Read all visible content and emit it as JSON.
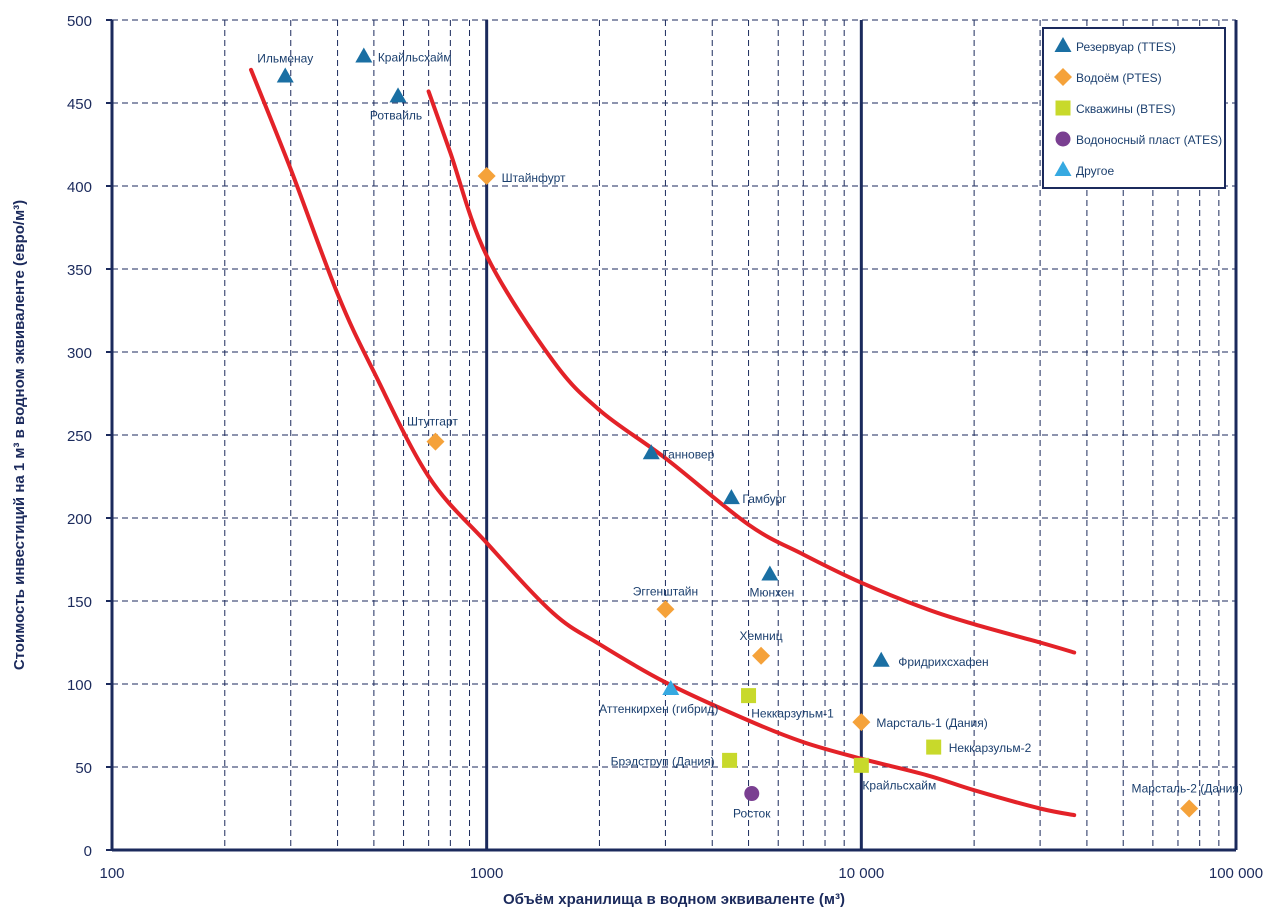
{
  "chart_data": {
    "type": "scatter",
    "title": "",
    "xlabel": "Объём хранилища в водном эквиваленте (м³)",
    "ylabel": "Стоимость инвестиций на 1 м³ в водном эквиваленте (евро/м³)",
    "xscale": "log",
    "xlim": [
      100,
      100000
    ],
    "ylim": [
      0,
      500
    ],
    "x_ticks": [
      100,
      1000,
      10000,
      100000
    ],
    "x_tick_labels": [
      "100",
      "1000",
      "10 000",
      "100 000"
    ],
    "y_ticks": [
      0,
      50,
      100,
      150,
      200,
      250,
      300,
      350,
      400,
      450,
      500
    ],
    "grid": true,
    "legend_position": "top-right",
    "series": [
      {
        "name": "Резервуар (TTES)",
        "marker": "triangle",
        "color": "#1a6fa3",
        "points": [
          {
            "x": 290,
            "y": 466,
            "label": "Ильменау"
          },
          {
            "x": 470,
            "y": 478,
            "label": "Крайльсхайм"
          },
          {
            "x": 580,
            "y": 454,
            "label": "Ротвайль"
          },
          {
            "x": 2750,
            "y": 239,
            "label": "Ганновер"
          },
          {
            "x": 4500,
            "y": 212,
            "label": "Гамбург"
          },
          {
            "x": 5700,
            "y": 166,
            "label": "Мюнхен"
          },
          {
            "x": 11300,
            "y": 114,
            "label": "Фридрихсхафен"
          }
        ]
      },
      {
        "name": "Водоём (PTES)",
        "marker": "diamond",
        "color": "#f5a23a",
        "points": [
          {
            "x": 1000,
            "y": 406,
            "label": "Штайнфурт"
          },
          {
            "x": 730,
            "y": 246,
            "label": "Штутгарт"
          },
          {
            "x": 3000,
            "y": 145,
            "label": "Эггенштайн"
          },
          {
            "x": 5400,
            "y": 117,
            "label": "Хемниц"
          },
          {
            "x": 10000,
            "y": 77,
            "label": "Марсталь-1 (Дания)"
          },
          {
            "x": 75000,
            "y": 25,
            "label": "Марсталь-2 (Дания)"
          }
        ]
      },
      {
        "name": "Скважины (BTES)",
        "marker": "square",
        "color": "#c8d92b",
        "points": [
          {
            "x": 5000,
            "y": 93,
            "label": "Неккарзульм-1"
          },
          {
            "x": 4450,
            "y": 54,
            "label": "Брэдструп (Дания)"
          },
          {
            "x": 10000,
            "y": 51,
            "label": "Крайльсхайм"
          },
          {
            "x": 15600,
            "y": 62,
            "label": "Неккарзульм-2"
          }
        ]
      },
      {
        "name": "Водоносный пласт (ATES)",
        "marker": "circle",
        "color": "#7a3f91",
        "points": [
          {
            "x": 5100,
            "y": 34,
            "label": "Росток"
          }
        ]
      },
      {
        "name": "Другое",
        "marker": "triangle",
        "color": "#36a9e1",
        "points": [
          {
            "x": 3100,
            "y": 97,
            "label": "Аттенкирхен (гибрид)"
          }
        ]
      }
    ],
    "trend_curves": [
      {
        "color": "#e32228",
        "points": [
          [
            235,
            470
          ],
          [
            300,
            410
          ],
          [
            400,
            335
          ],
          [
            500,
            288
          ],
          [
            700,
            225
          ],
          [
            1000,
            185
          ],
          [
            1500,
            143
          ],
          [
            2000,
            124
          ],
          [
            3000,
            101
          ],
          [
            5000,
            78
          ],
          [
            7000,
            65
          ],
          [
            10000,
            55
          ],
          [
            15000,
            45
          ],
          [
            20000,
            36
          ],
          [
            30000,
            25
          ],
          [
            37000,
            21
          ]
        ]
      },
      {
        "color": "#e32228",
        "points": [
          [
            700,
            457
          ],
          [
            800,
            420
          ],
          [
            1000,
            358
          ],
          [
            1500,
            295
          ],
          [
            2000,
            265
          ],
          [
            3000,
            236
          ],
          [
            5000,
            196
          ],
          [
            7000,
            178
          ],
          [
            10000,
            161
          ],
          [
            15000,
            145
          ],
          [
            20000,
            136
          ],
          [
            30000,
            125
          ],
          [
            37000,
            119
          ]
        ]
      }
    ]
  }
}
